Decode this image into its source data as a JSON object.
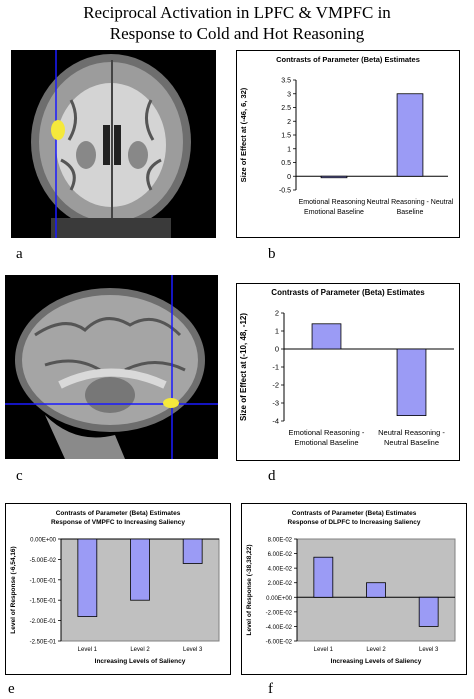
{
  "figure": {
    "title_line1": "Reciprocal Activation in LPFC & VMPFC in",
    "title_line2": "Response to Cold and Hot Reasoning",
    "panel_labels": [
      "a",
      "b",
      "c",
      "d",
      "e",
      "f"
    ]
  },
  "colors": {
    "bar_fill": "#9b9bf5",
    "bar_stroke": "#000000",
    "plot_bg": "#c0c0c0",
    "crosshair": "#1a1aff",
    "activation": "#f5e93b"
  },
  "chart_data": [
    {
      "type": "bar",
      "title": "Contrasts of Parameter (Beta) Estimates",
      "ylabel": "Size of Effect at (-46, 6, 32)",
      "categories": [
        [
          "Emotional Reasoning -",
          "Emotional Baseline"
        ],
        [
          "Neutral Reasoning - Neutral",
          "Baseline"
        ]
      ],
      "values": [
        -0.02,
        3.0
      ],
      "ylim": [
        -0.5,
        3.5
      ],
      "yticks": [
        "3.5",
        "3",
        "2.5",
        "2",
        "1.5",
        "1",
        "0.5",
        "0",
        "-0.5"
      ],
      "plot_bg": "white"
    },
    {
      "type": "bar",
      "title": "Contrasts of Parameter (Beta) Estimates",
      "ylabel": "Size of Effect at (-10, 48, -12)",
      "categories": [
        [
          "Emotional Reasoning -",
          "Emotional Baseline"
        ],
        [
          "Neutral Reasoning -",
          "Neutral Baseline"
        ]
      ],
      "values": [
        1.4,
        -3.7
      ],
      "ylim": [
        -4,
        2
      ],
      "yticks": [
        "2",
        "1",
        "0",
        "-1",
        "-2",
        "-3",
        "-4"
      ],
      "plot_bg": "white"
    },
    {
      "type": "bar",
      "title": "Contrasts of Parameter (Beta) Estimates",
      "subtitle": "Response of VMPFC to Increasing Saliency",
      "ylabel": "Level of Response (-6,54,16)",
      "xlabel": "Increasing Levels of Saliency",
      "categories": [
        "Level 1",
        "Level 2",
        "Level 3"
      ],
      "values": [
        -0.19,
        -0.15,
        -0.06
      ],
      "ylim": [
        -0.25,
        0
      ],
      "yticks": [
        "0.00E+00",
        "-5.00E-02",
        "-1.00E-01",
        "-1.50E-01",
        "-2.00E-01",
        "-2.50E-01"
      ],
      "plot_bg": "gray"
    },
    {
      "type": "bar",
      "title": "Contrasts of Parameter (Beta) Estimates",
      "subtitle": "Response of DLPFC to Increasing Saliency",
      "ylabel": "Level of Response (-38,38,22)",
      "xlabel": "Increasing Levels of Saliency",
      "categories": [
        "Level 1",
        "Level 2",
        "Level 3"
      ],
      "values": [
        0.055,
        0.02,
        -0.04
      ],
      "ylim": [
        -0.06,
        0.08
      ],
      "yticks": [
        "8.00E-02",
        "6.00E-02",
        "4.00E-02",
        "2.00E-02",
        "0.00E+00",
        "-2.00E-02",
        "-4.00E-02",
        "-6.00E-02"
      ],
      "plot_bg": "gray"
    }
  ]
}
